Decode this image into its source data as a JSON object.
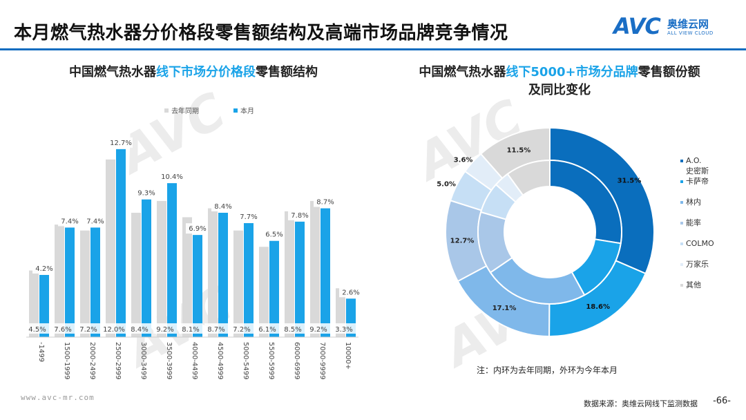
{
  "header": {
    "title": "本月燃气热水器分价格段零售额结构及高端市场品牌竞争情况",
    "logo_text": "AVC",
    "logo_cn": "奥维云网",
    "logo_en": "ALL VIEW CLOUD"
  },
  "bar_title": {
    "pre": "中国燃气热水器",
    "highlight": "线下市场分价格段",
    "post": "零售额结构"
  },
  "donut_title": {
    "pre": "中国燃气热水器",
    "highlight": "线下5000+市场分品牌",
    "post": "零售额份额及同比变化"
  },
  "donut_note": "注：内环为去年同期，外环为今年本月",
  "footer": {
    "website": "www.avc-mr.com",
    "source": "数据来源：奥维云网线下监测数据",
    "page": "-66-"
  },
  "watermark": "AVC",
  "chart_data": [
    {
      "type": "bar",
      "categories": [
        "-1499",
        "1500-1999",
        "2000-2499",
        "2500-2999",
        "3000-3499",
        "3500-3999",
        "4000-4499",
        "4500-4999",
        "5000-5499",
        "5500-5999",
        "6000-6999",
        "7000-9999",
        "10000+"
      ],
      "series": [
        {
          "name": "去年同期",
          "color": "#d9d9d9",
          "values": [
            4.5,
            7.6,
            7.2,
            12.0,
            8.4,
            9.2,
            8.1,
            8.7,
            7.2,
            6.1,
            8.5,
            9.2,
            3.3
          ]
        },
        {
          "name": "本月",
          "color": "#1aa3e8",
          "values": [
            4.2,
            7.4,
            7.4,
            12.7,
            9.3,
            10.4,
            6.9,
            8.4,
            7.7,
            6.5,
            7.8,
            8.7,
            2.6
          ]
        }
      ],
      "unit": "%",
      "ylim": [
        0,
        14
      ],
      "grid": false,
      "legend": "top"
    },
    {
      "type": "pie",
      "donut": true,
      "brands": [
        {
          "name": "A.O.史密斯",
          "color": "#0a6ebd"
        },
        {
          "name": "卡萨帝",
          "color": "#1aa3e8"
        },
        {
          "name": "林内",
          "color": "#7fb8ea"
        },
        {
          "name": "能率",
          "color": "#a9c7e8"
        },
        {
          "name": "COLMO",
          "color": "#c6dff5"
        },
        {
          "name": "万家乐",
          "color": "#e2edf8"
        },
        {
          "name": "其他",
          "color": "#d9d9d9"
        }
      ],
      "outer": {
        "name": "今年本月",
        "values": [
          31.5,
          18.6,
          17.1,
          12.7,
          5.0,
          3.6,
          11.5
        ]
      },
      "inner": {
        "name": "去年同期",
        "values": [
          27.5,
          14.5,
          23.5,
          14.0,
          7.0,
          3.5,
          10.0
        ]
      },
      "unit": "%",
      "legend": "right"
    }
  ]
}
